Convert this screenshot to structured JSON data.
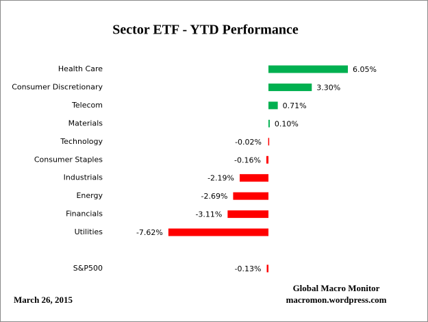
{
  "chart_data": {
    "type": "hbar",
    "title": "Sector ETF - YTD  Performance",
    "categories": [
      "Health Care",
      "Consumer Discretionary",
      "Telecom",
      "Materials",
      "Technology",
      "Consumer Staples",
      "Industrials",
      "Energy",
      "Financials",
      "Utilities",
      null,
      "S&P500"
    ],
    "values": [
      6.05,
      3.3,
      0.71,
      0.1,
      -0.02,
      -0.16,
      -2.19,
      -2.69,
      -3.11,
      -7.62,
      null,
      -0.13
    ],
    "value_labels": [
      "6.05%",
      "3.30%",
      "0.71%",
      "0.10%",
      "-0.02%",
      "-0.16%",
      "-2.19%",
      "-2.69%",
      "-3.11%",
      "-7.62%",
      null,
      "-0.13%"
    ],
    "color_positive": "#00b050",
    "color_negative": "#ff0000",
    "xlim": [
      -8,
      8
    ],
    "annotations": [
      "Global Macro Monitor",
      "macromon.wordpress.com",
      "March 26,  2015"
    ]
  }
}
